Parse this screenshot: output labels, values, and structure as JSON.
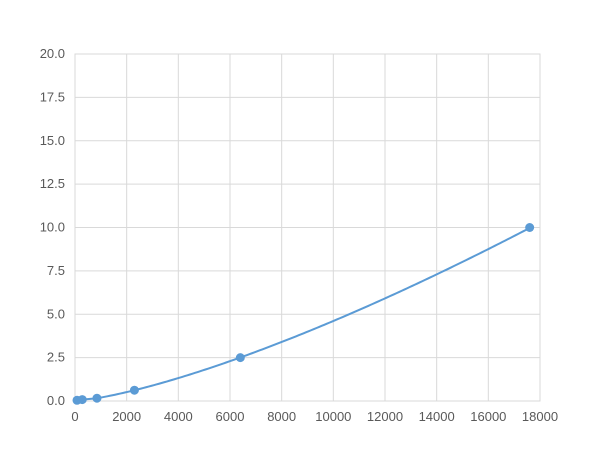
{
  "chart_data": {
    "type": "scatter",
    "title": "",
    "xlabel": "",
    "ylabel": "",
    "xlim": [
      0,
      18000
    ],
    "ylim": [
      0,
      20
    ],
    "xticks": [
      0,
      2000,
      4000,
      6000,
      8000,
      10000,
      12000,
      14000,
      16000,
      18000
    ],
    "yticks": [
      "0.0",
      "2.5",
      "5.0",
      "7.5",
      "10.0",
      "12.5",
      "15.0",
      "17.5",
      "20.0"
    ],
    "grid": true,
    "series": [
      {
        "x": [
          78,
          280,
          850,
          2300,
          6400,
          17600
        ],
        "y": [
          0.04,
          0.08,
          0.16,
          0.62,
          2.5,
          10.0
        ],
        "color": "#5b9bd5",
        "smooth_fit": true
      }
    ]
  }
}
